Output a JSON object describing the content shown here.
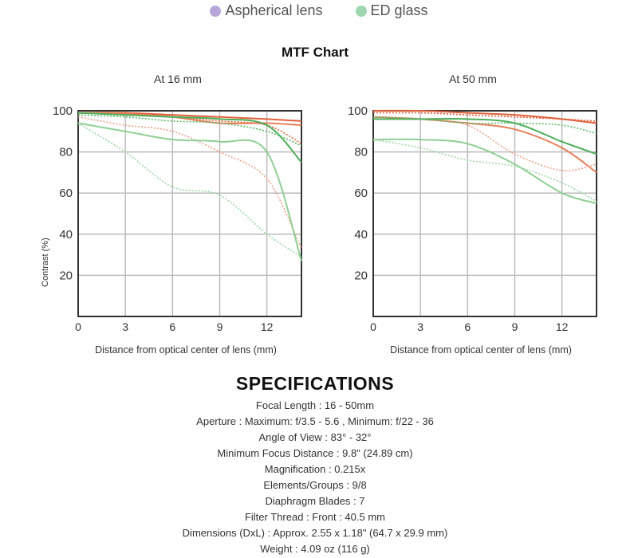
{
  "legend": [
    {
      "label": "Aspherical lens",
      "color": "#b7a6d8"
    },
    {
      "label": "ED glass",
      "color": "#9fd6b0"
    }
  ],
  "chart_data": {
    "type": "line",
    "title": "MTF Chart",
    "charts": [
      {
        "subtitle": "At 16 mm",
        "xlabel": "Distance from optical center of lens (mm)",
        "ylabel": "Contrast (%)",
        "xticks": [
          0,
          3,
          6,
          9,
          12
        ],
        "yticks": [
          20,
          40,
          60,
          80,
          100
        ],
        "xlim": [
          0,
          14.2
        ],
        "ylim": [
          0,
          100
        ],
        "grid": true,
        "x": [
          0,
          3,
          6,
          9,
          12,
          14.2
        ],
        "series": [
          {
            "name": "red-solid-1",
            "color": "#e0603a",
            "style": "solid",
            "values": [
              99,
              99,
              98,
              97,
              96,
              95
            ]
          },
          {
            "name": "red-solid-2",
            "color": "#e8805a",
            "style": "solid",
            "values": [
              99,
              98.5,
              97,
              94,
              94,
              93
            ]
          },
          {
            "name": "red-dotted-1",
            "color": "#e0603a",
            "style": "dotted",
            "values": [
              99,
              98,
              97,
              95,
              93,
              84
            ]
          },
          {
            "name": "red-dotted-2",
            "color": "#eba08a",
            "style": "dotted",
            "values": [
              97,
              93,
              90,
              80,
              67,
              33
            ]
          },
          {
            "name": "green-solid-1",
            "color": "#4cae5a",
            "style": "solid",
            "values": [
              99,
              98,
              97,
              96,
              93,
              75
            ]
          },
          {
            "name": "green-dotted-1",
            "color": "#5cb86a",
            "style": "dotted",
            "values": [
              98,
              97,
              95,
              94,
              90,
              83
            ]
          },
          {
            "name": "green-solid-2",
            "color": "#8fcf95",
            "style": "solid",
            "values": [
              94,
              90,
              86,
              85,
              80,
              27
            ]
          },
          {
            "name": "green-dotted-2",
            "color": "#9fd6a6",
            "style": "dotted",
            "values": [
              94,
              80,
              63,
              59,
              40,
              29
            ]
          }
        ]
      },
      {
        "subtitle": "At 50 mm",
        "xlabel": "Distance from optical center of lens (mm)",
        "ylabel": "",
        "xticks": [
          0,
          3,
          6,
          9,
          12
        ],
        "yticks": [
          20,
          40,
          60,
          80,
          100
        ],
        "xlim": [
          0,
          14.2
        ],
        "ylim": [
          0,
          100
        ],
        "grid": true,
        "x": [
          0,
          3,
          6,
          9,
          12,
          14.2
        ],
        "series": [
          {
            "name": "red-solid-1",
            "color": "#e0603a",
            "style": "solid",
            "values": [
              100,
              100,
              99,
              98,
              96,
              94
            ]
          },
          {
            "name": "red-dotted-1",
            "color": "#e0603a",
            "style": "dotted",
            "values": [
              99,
              99,
              98,
              97,
              96,
              95
            ]
          },
          {
            "name": "red-solid-2",
            "color": "#e8805a",
            "style": "solid",
            "values": [
              97,
              96,
              94,
              91,
              82,
              70
            ]
          },
          {
            "name": "red-dotted-2",
            "color": "#eba08a",
            "style": "dotted",
            "values": [
              97,
              96,
              93,
              79,
              71,
              74
            ]
          },
          {
            "name": "green-solid-1",
            "color": "#4cae5a",
            "style": "solid",
            "values": [
              96,
              96,
              96,
              94,
              85,
              79
            ]
          },
          {
            "name": "green-dotted-1",
            "color": "#5cb86a",
            "style": "dotted",
            "values": [
              97,
              96,
              94,
              94,
              93,
              89
            ]
          },
          {
            "name": "green-solid-2",
            "color": "#8fcf95",
            "style": "solid",
            "values": [
              86,
              86,
              84,
              74,
              60,
              55
            ]
          },
          {
            "name": "green-dotted-2",
            "color": "#9fd6a6",
            "style": "dotted",
            "values": [
              86,
              82,
              76,
              73,
              65,
              56
            ]
          }
        ]
      }
    ]
  },
  "specs": {
    "title": "SPECIFICATIONS",
    "lines": [
      "Focal Length : 16 - 50mm",
      "Aperture : Maximum: f/3.5 - 5.6 , Minimum: f/22 - 36",
      "Angle of View : 83° - 32°",
      "Minimum Focus Distance : 9.8\" (24.89 cm)",
      "Magnification : 0.215x",
      "Elements/Groups : 9/8",
      "Diaphragm Blades : 7",
      "Filter Thread : Front : 40.5 mm",
      "Dimensions (DxL) : Approx. 2.55 x 1.18\" (64.7 x 29.9 mm)",
      "Weight : 4.09 oz (116 g)"
    ]
  }
}
